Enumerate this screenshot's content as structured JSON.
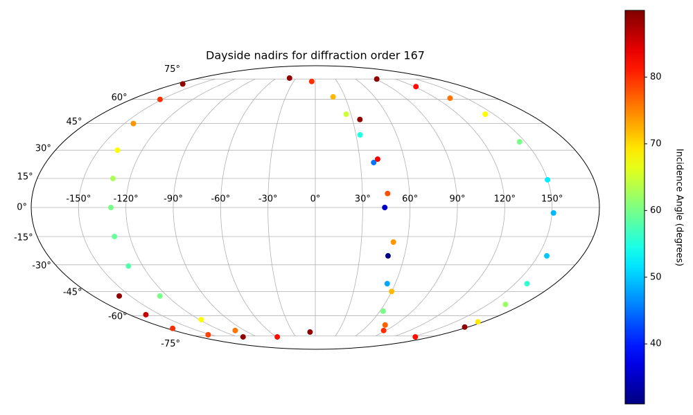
{
  "chart_data": {
    "type": "scatter",
    "projection": "mollweide",
    "title": "Dayside nadirs for diffraction order 167",
    "xlim": [
      -180,
      180
    ],
    "ylim": [
      -90,
      90
    ],
    "xticks": [
      {
        "value": -150,
        "label": "-150°"
      },
      {
        "value": -120,
        "label": "-120°"
      },
      {
        "value": -90,
        "label": "-90°"
      },
      {
        "value": -60,
        "label": "-60°"
      },
      {
        "value": -30,
        "label": "-30°"
      },
      {
        "value": 0,
        "label": "0°"
      },
      {
        "value": 30,
        "label": "30°"
      },
      {
        "value": 60,
        "label": "60°"
      },
      {
        "value": 90,
        "label": "90°"
      },
      {
        "value": 120,
        "label": "120°"
      },
      {
        "value": 150,
        "label": "150°"
      }
    ],
    "yticks": [
      {
        "value": -75,
        "label": "-75°"
      },
      {
        "value": -60,
        "label": "-60°"
      },
      {
        "value": -45,
        "label": "-45°"
      },
      {
        "value": -30,
        "label": "-30°"
      },
      {
        "value": -15,
        "label": "-15°"
      },
      {
        "value": 0,
        "label": "0°"
      },
      {
        "value": 15,
        "label": "15°"
      },
      {
        "value": 30,
        "label": "30°"
      },
      {
        "value": 45,
        "label": "45°"
      },
      {
        "value": 60,
        "label": "60°"
      },
      {
        "value": 75,
        "label": "75°"
      }
    ],
    "grid": true,
    "colormap": "jet",
    "colorbar": {
      "label": "Incidence Angle (degrees)",
      "lim": [
        31,
        90
      ],
      "ticks": [
        40,
        50,
        60,
        70,
        80
      ]
    },
    "series": [
      {
        "x": [
          -171,
          -152,
          -143,
          -137,
          -131,
          -129.5,
          -130,
          -130,
          -126,
          -118,
          -102,
          -59,
          -7
        ],
        "y": [
          71,
          60,
          45,
          30,
          15,
          0,
          -15,
          -30.7,
          -47.7,
          -62.7,
          -70.6,
          -75.8,
          -71.8
        ],
        "values": [
          89,
          80,
          74,
          68,
          63,
          60,
          59,
          58,
          60,
          68,
          76,
          82,
          89
        ]
      },
      {
        "x": [
          -159,
          -164,
          -173,
          -154,
          -112
        ],
        "y": [
          -47.7,
          -59.4,
          -69,
          -74,
          -75.8
        ],
        "values": [
          89,
          86,
          80,
          79,
          89
        ]
      },
      {
        "x": [
          -40,
          -5,
          18,
          26,
          33,
          39,
          44,
          49,
          54,
          63,
          87,
          155,
          176
        ],
        "y": [
          75.8,
          73,
          61.7,
          50.6,
          38.5,
          23.4,
          0,
          -25.2,
          -40.5,
          -57.1,
          -70.6,
          -75.8,
          -68
        ],
        "values": [
          89,
          80,
          72,
          65,
          55,
          45,
          35,
          31,
          48,
          60,
          80,
          82,
          89
        ]
      },
      {
        "x": [
          36,
          42,
          46,
          51,
          60,
          79
        ],
        "y": [
          47.4,
          25.2,
          7.2,
          -17.9,
          -45,
          -66.5
        ],
        "values": [
          89,
          83,
          78,
          74,
          72,
          77
        ]
      },
      {
        "x": [
          92,
          122,
          134,
          143,
          146,
          150,
          151,
          156,
          159,
          165,
          174
        ],
        "y": [
          75,
          69,
          60.8,
          50.6,
          34.6,
          14.3,
          -2.8,
          -25.2,
          -40.5,
          -52.8,
          -64.2
        ],
        "values": [
          89,
          82,
          76,
          68,
          60,
          52,
          49,
          50,
          56,
          62,
          69
        ]
      }
    ]
  }
}
